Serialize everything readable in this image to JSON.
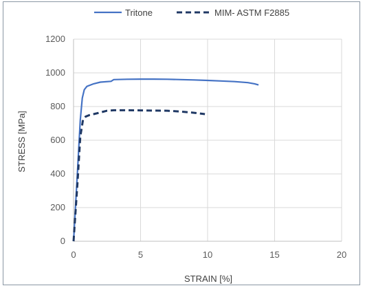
{
  "chart_data": {
    "type": "line",
    "title": "",
    "xlabel": "STRAIN [%]",
    "ylabel": "STRESS [MPa]",
    "xlim": [
      0,
      20
    ],
    "ylim": [
      0,
      1200
    ],
    "x_ticks": [
      "0",
      "5",
      "10",
      "15",
      "20"
    ],
    "y_ticks": [
      "0",
      "200",
      "400",
      "600",
      "800",
      "1000",
      "1200"
    ],
    "grid": "on",
    "legend_position": "top",
    "series": [
      {
        "name": "Tritone",
        "color": "#4472c4",
        "style": "solid",
        "points": [
          [
            0,
            0
          ],
          [
            0.3,
            420
          ],
          [
            0.5,
            720
          ],
          [
            0.65,
            850
          ],
          [
            0.8,
            900
          ],
          [
            1.0,
            920
          ],
          [
            1.5,
            935
          ],
          [
            2.0,
            945
          ],
          [
            2.8,
            950
          ],
          [
            2.9,
            955
          ],
          [
            3.0,
            960
          ],
          [
            4.0,
            962
          ],
          [
            5.0,
            963
          ],
          [
            6.0,
            963
          ],
          [
            7.0,
            962
          ],
          [
            8.0,
            960
          ],
          [
            9.0,
            958
          ],
          [
            10.0,
            955
          ],
          [
            11.0,
            952
          ],
          [
            12.0,
            948
          ],
          [
            13.0,
            942
          ],
          [
            13.5,
            935
          ],
          [
            13.8,
            928
          ]
        ]
      },
      {
        "name": "MIM- ASTM F2885",
        "color": "#1f3864",
        "style": "dashed",
        "points": [
          [
            0,
            0
          ],
          [
            0.3,
            350
          ],
          [
            0.5,
            620
          ],
          [
            0.7,
            720
          ],
          [
            0.9,
            740
          ],
          [
            1.2,
            750
          ],
          [
            1.5,
            755
          ],
          [
            2.0,
            765
          ],
          [
            2.5,
            775
          ],
          [
            3.0,
            778
          ],
          [
            4.0,
            778
          ],
          [
            5.0,
            777
          ],
          [
            6.0,
            776
          ],
          [
            7.0,
            775
          ],
          [
            8.0,
            770
          ],
          [
            9.0,
            763
          ],
          [
            9.8,
            755
          ]
        ]
      }
    ]
  }
}
